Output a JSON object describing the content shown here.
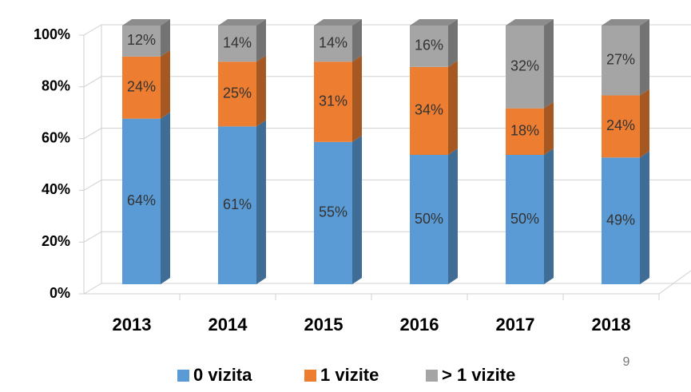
{
  "chart_data": {
    "type": "bar3d_stacked",
    "categories": [
      "2013",
      "2014",
      "2015",
      "2016",
      "2017",
      "2018"
    ],
    "series": [
      {
        "name": "0 vizita",
        "color": "#5b9bd5",
        "values": [
          64,
          61,
          55,
          50,
          50,
          49
        ],
        "value_labels": [
          "64%",
          "61%",
          "55%",
          "50%",
          "50%",
          "49%"
        ]
      },
      {
        "name": "1 vizite",
        "color": "#ed7d31",
        "values": [
          24,
          25,
          31,
          34,
          18,
          24
        ],
        "value_labels": [
          "24%",
          "25%",
          "31%",
          "34%",
          "18%",
          "24%"
        ]
      },
      {
        "name": "> 1 vizite",
        "color": "#a5a5a5",
        "values": [
          12,
          14,
          14,
          16,
          32,
          27
        ],
        "value_labels": [
          "12%",
          "14%",
          "14%",
          "16%",
          "32%",
          "27%"
        ]
      }
    ],
    "ylim": [
      0,
      100
    ],
    "yticks": [
      {
        "value": 0,
        "label": "0%"
      },
      {
        "value": 20,
        "label": "20%"
      },
      {
        "value": 40,
        "label": "40%"
      },
      {
        "value": 60,
        "label": "60%"
      },
      {
        "value": 80,
        "label": "80%"
      },
      {
        "value": 100,
        "label": "100%"
      }
    ],
    "grid": true,
    "legend": "bottom",
    "page_number": "9"
  }
}
